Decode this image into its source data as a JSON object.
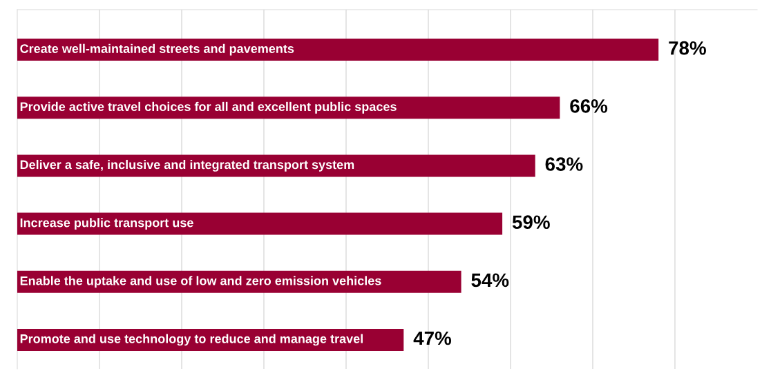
{
  "chart_data": {
    "type": "bar",
    "orientation": "horizontal",
    "categories": [
      "Create well-maintained streets and pavements",
      "Provide active travel choices for all and excellent public spaces",
      "Deliver a safe, inclusive and integrated transport system",
      "Increase public transport use",
      "Enable the uptake and use of low and zero emission vehicles",
      "Promote and use technology to reduce and manage travel"
    ],
    "values": [
      78,
      66,
      63,
      59,
      54,
      47
    ],
    "color": "#990033",
    "value_labels": [
      "78%",
      "66%",
      "63%",
      "59%",
      "54%",
      "47%"
    ],
    "xlim": [
      0,
      90
    ],
    "xticks": [
      {
        "value": 10,
        "label": null
      },
      {
        "value": 20,
        "label": null
      },
      {
        "value": 30,
        "label": null
      },
      {
        "value": 40,
        "label": null
      },
      {
        "value": 50,
        "label": null
      },
      {
        "value": 60,
        "label": null
      },
      {
        "value": 70,
        "label": null
      },
      {
        "value": 80,
        "label": null
      }
    ],
    "grid": "x"
  }
}
